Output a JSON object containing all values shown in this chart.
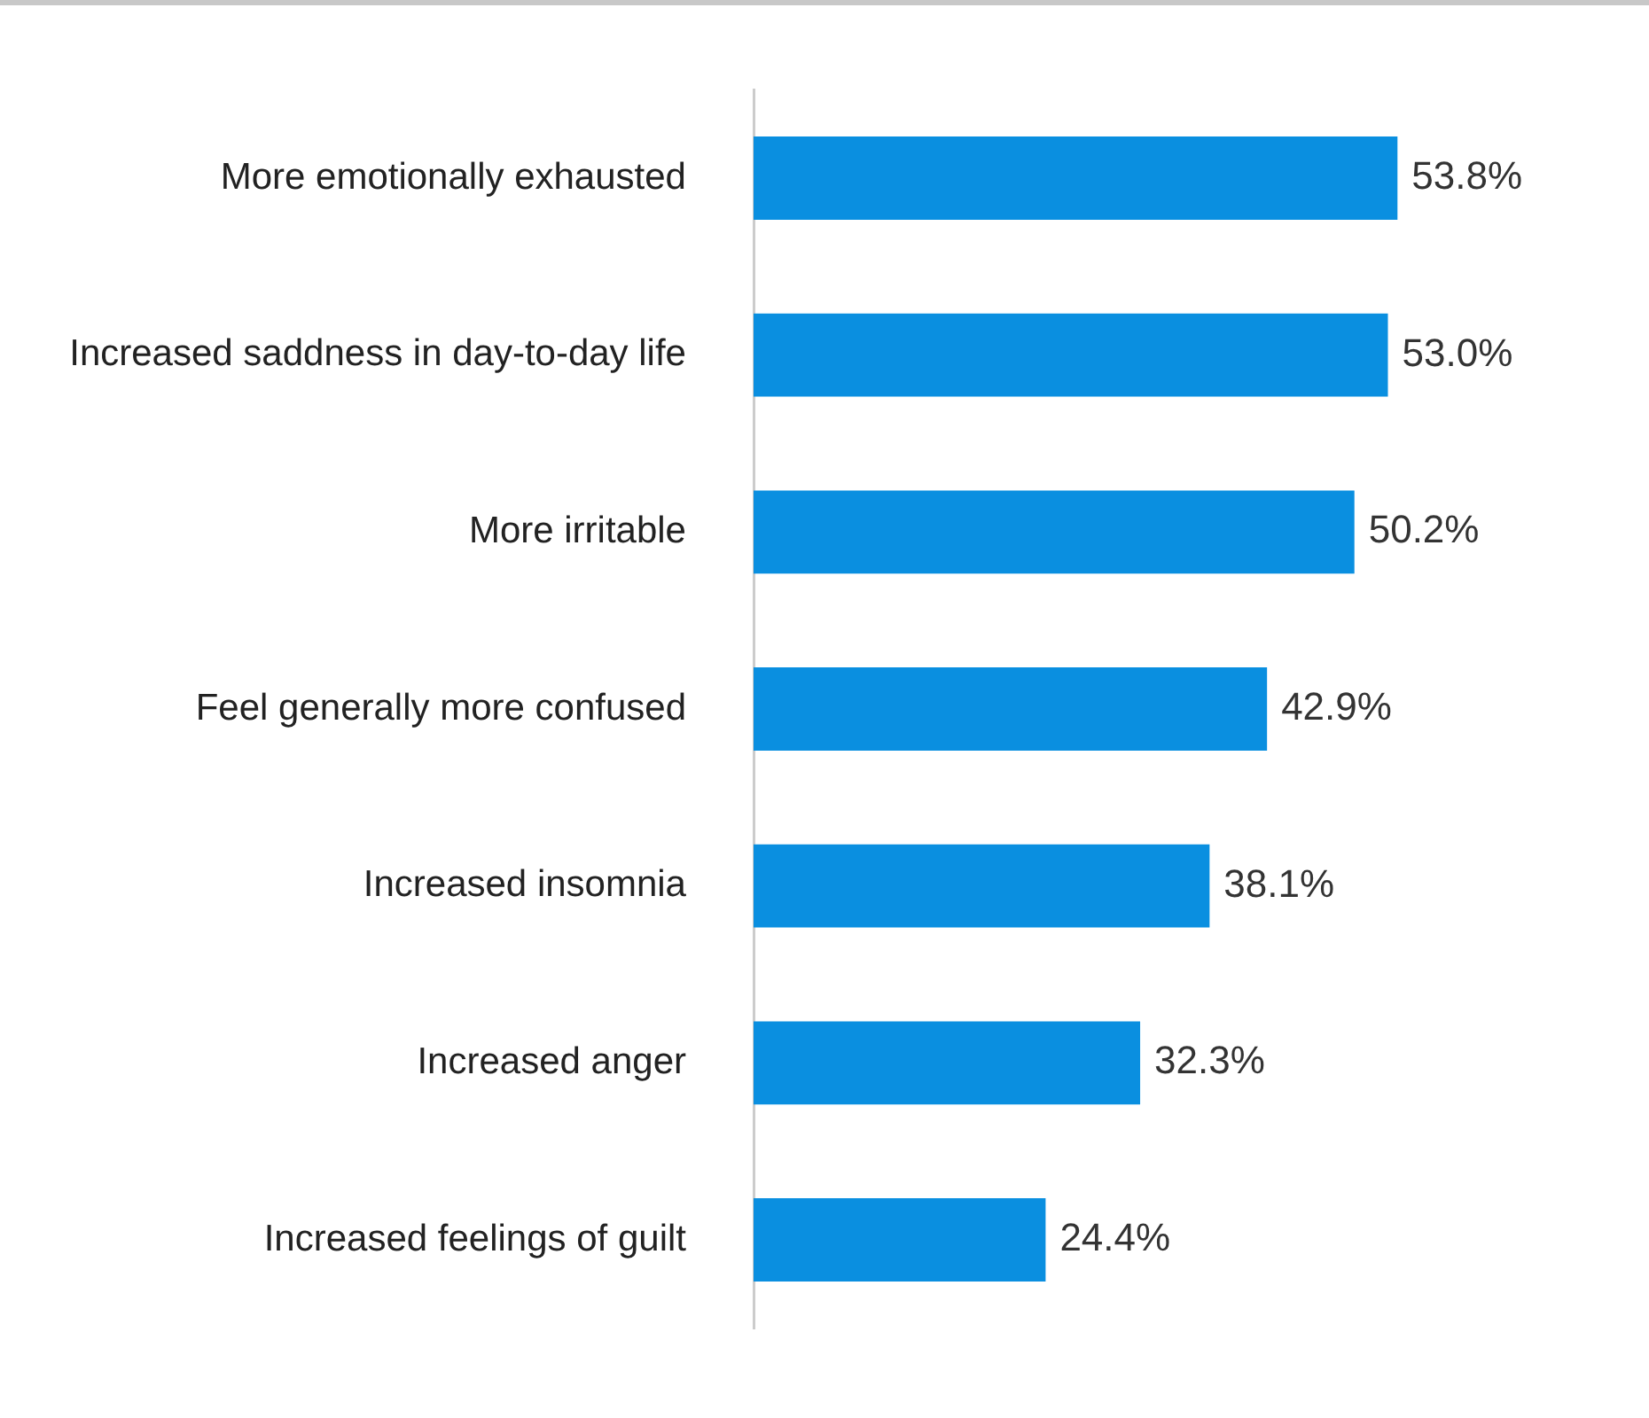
{
  "chart_data": {
    "type": "bar",
    "orientation": "horizontal",
    "categories": [
      "More emotionally exhausted",
      "Increased saddness in day-to-day life",
      "More irritable",
      "Feel generally more confused",
      "Increased insomnia",
      "Increased anger",
      "Increased feelings of guilt"
    ],
    "values": [
      53.8,
      53.0,
      50.2,
      42.9,
      38.1,
      32.3,
      24.4
    ],
    "value_labels": [
      "53.8%",
      "53.0%",
      "50.2%",
      "42.9%",
      "38.1%",
      "32.3%",
      "24.4%"
    ],
    "color": "#0a8fe0",
    "grid": false,
    "legend": false,
    "tick_labels": "y"
  }
}
